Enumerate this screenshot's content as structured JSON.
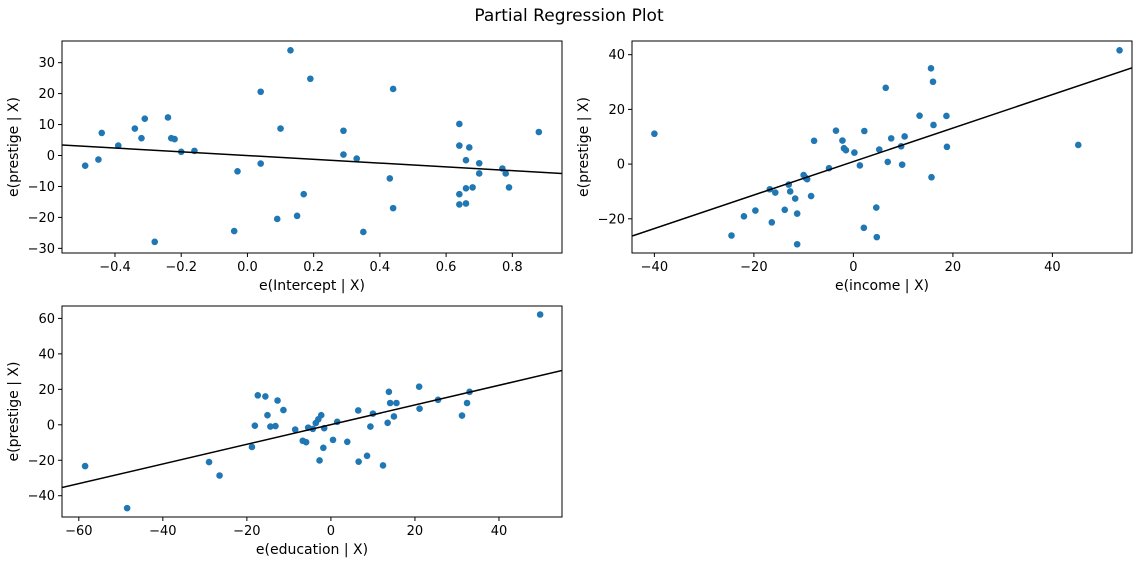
{
  "figure": {
    "title": "Partial Regression Plot"
  },
  "chart_data": [
    {
      "type": "scatter",
      "xlabel": "e(Intercept | X)",
      "ylabel": "e(prestige | X)",
      "xlim": [
        -0.56,
        0.95
      ],
      "ylim": [
        -31.5,
        37
      ],
      "xticks": [
        -0.4,
        -0.2,
        0.0,
        0.2,
        0.4,
        0.6,
        0.8
      ],
      "xtick_labels": [
        "−0.4",
        "−0.2",
        "0.0",
        "0.2",
        "0.4",
        "0.6",
        "0.8"
      ],
      "yticks": [
        -30,
        -20,
        -10,
        0,
        10,
        20,
        30
      ],
      "ytick_labels": [
        "−30",
        "−20",
        "−10",
        "0",
        "10",
        "20",
        "30"
      ],
      "marker_color": "#1f77b4",
      "line_color": "#000000",
      "fit_line": [
        [
          -0.56,
          3.4
        ],
        [
          0.95,
          -5.8
        ]
      ],
      "points": [
        [
          -0.49,
          -3.3
        ],
        [
          -0.45,
          -1.3
        ],
        [
          -0.44,
          7.3
        ],
        [
          -0.39,
          3.2
        ],
        [
          -0.34,
          8.7
        ],
        [
          -0.32,
          5.6
        ],
        [
          -0.31,
          11.9
        ],
        [
          -0.28,
          -27.9
        ],
        [
          -0.24,
          12.3
        ],
        [
          -0.23,
          5.6
        ],
        [
          -0.22,
          5.3
        ],
        [
          -0.2,
          1.2
        ],
        [
          -0.16,
          1.5
        ],
        [
          -0.04,
          -24.4
        ],
        [
          -0.03,
          -5.1
        ],
        [
          0.04,
          20.6
        ],
        [
          0.04,
          -2.6
        ],
        [
          0.09,
          -20.5
        ],
        [
          0.1,
          8.7
        ],
        [
          0.13,
          34.0
        ],
        [
          0.15,
          -19.5
        ],
        [
          0.17,
          -12.5
        ],
        [
          0.19,
          24.8
        ],
        [
          0.29,
          8.0
        ],
        [
          0.29,
          0.3
        ],
        [
          0.33,
          -1.0
        ],
        [
          0.35,
          -24.7
        ],
        [
          0.43,
          -7.4
        ],
        [
          0.44,
          21.5
        ],
        [
          0.44,
          -17.0
        ],
        [
          0.64,
          10.2
        ],
        [
          0.64,
          3.2
        ],
        [
          0.64,
          -12.5
        ],
        [
          0.64,
          -15.8
        ],
        [
          0.66,
          -1.5
        ],
        [
          0.66,
          -10.6
        ],
        [
          0.66,
          -15.5
        ],
        [
          0.67,
          2.6
        ],
        [
          0.68,
          -10.3
        ],
        [
          0.7,
          -2.5
        ],
        [
          0.7,
          -5.8
        ],
        [
          0.77,
          -4.2
        ],
        [
          0.78,
          -5.8
        ],
        [
          0.79,
          -10.3
        ],
        [
          0.88,
          7.6
        ]
      ]
    },
    {
      "type": "scatter",
      "xlabel": "e(income | X)",
      "ylabel": "e(prestige | X)",
      "xlim": [
        -44.5,
        56
      ],
      "ylim": [
        -32.5,
        45
      ],
      "xticks": [
        -40,
        -20,
        0,
        20,
        40
      ],
      "xtick_labels": [
        "−40",
        "−20",
        "0",
        "20",
        "40"
      ],
      "yticks": [
        -20,
        0,
        20,
        40
      ],
      "ytick_labels": [
        "−20",
        "0",
        "20",
        "40"
      ],
      "marker_color": "#1f77b4",
      "line_color": "#000000",
      "fit_line": [
        [
          -44.5,
          -26.3
        ],
        [
          56,
          35.2
        ]
      ],
      "points": [
        [
          -40.0,
          11.1
        ],
        [
          -24.5,
          -26.1
        ],
        [
          -22.0,
          -19.1
        ],
        [
          -19.7,
          -17.0
        ],
        [
          -16.8,
          -9.2
        ],
        [
          -16.4,
          -21.3
        ],
        [
          -15.7,
          -10.4
        ],
        [
          -13.8,
          -16.7
        ],
        [
          -13.0,
          -7.5
        ],
        [
          -12.7,
          -10.0
        ],
        [
          -11.7,
          -12.6
        ],
        [
          -11.3,
          -18.1
        ],
        [
          -11.3,
          -29.3
        ],
        [
          -10.0,
          -4.0
        ],
        [
          -9.6,
          -5.0
        ],
        [
          -9.3,
          -5.5
        ],
        [
          -8.5,
          -11.7
        ],
        [
          -7.9,
          8.5
        ],
        [
          -4.9,
          -1.5
        ],
        [
          -3.5,
          12.2
        ],
        [
          -2.2,
          8.6
        ],
        [
          -1.9,
          5.8
        ],
        [
          -1.5,
          5.1
        ],
        [
          0.2,
          4.2
        ],
        [
          1.3,
          -0.5
        ],
        [
          2.1,
          -23.3
        ],
        [
          2.2,
          12.1
        ],
        [
          4.6,
          -15.9
        ],
        [
          4.7,
          -26.7
        ],
        [
          5.2,
          5.3
        ],
        [
          6.5,
          27.9
        ],
        [
          6.9,
          0.8
        ],
        [
          7.6,
          9.4
        ],
        [
          9.6,
          6.5
        ],
        [
          9.8,
          -0.2
        ],
        [
          10.3,
          10.1
        ],
        [
          13.3,
          17.7
        ],
        [
          15.6,
          35.0
        ],
        [
          15.7,
          -4.8
        ],
        [
          16.0,
          30.1
        ],
        [
          16.1,
          14.3
        ],
        [
          18.7,
          17.6
        ],
        [
          18.8,
          6.3
        ],
        [
          45.2,
          7.0
        ],
        [
          53.5,
          41.6
        ]
      ]
    },
    {
      "type": "scatter",
      "xlabel": "e(education | X)",
      "ylabel": "e(prestige | X)",
      "xlim": [
        -64,
        55
      ],
      "ylim": [
        -52,
        67
      ],
      "xticks": [
        -60,
        -40,
        -20,
        0,
        20,
        40
      ],
      "xtick_labels": [
        "−60",
        "−40",
        "−20",
        "0",
        "20",
        "40"
      ],
      "yticks": [
        -40,
        -20,
        0,
        20,
        40,
        60
      ],
      "ytick_labels": [
        "−40",
        "−20",
        "0",
        "20",
        "40",
        "60"
      ],
      "marker_color": "#1f77b4",
      "line_color": "#000000",
      "fit_line": [
        [
          -64,
          -35.4
        ],
        [
          55,
          30.6
        ]
      ],
      "points": [
        [
          -58.5,
          -23.3
        ],
        [
          -48.5,
          -47.0
        ],
        [
          -29.0,
          -21.0
        ],
        [
          -26.5,
          -28.6
        ],
        [
          -18.8,
          -12.5
        ],
        [
          -18.1,
          -0.5
        ],
        [
          -17.4,
          16.6
        ],
        [
          -15.6,
          16.0
        ],
        [
          -15.1,
          5.4
        ],
        [
          -14.4,
          -1.0
        ],
        [
          -13.2,
          -0.7
        ],
        [
          -12.7,
          13.7
        ],
        [
          -11.3,
          8.3
        ],
        [
          -8.5,
          -2.7
        ],
        [
          -6.7,
          -9.0
        ],
        [
          -5.9,
          -9.8
        ],
        [
          -5.4,
          -1.6
        ],
        [
          -4.3,
          -2.3
        ],
        [
          -3.6,
          1.0
        ],
        [
          -3.0,
          3.1
        ],
        [
          -2.7,
          -20.1
        ],
        [
          -2.3,
          5.4
        ],
        [
          -1.8,
          -13.0
        ],
        [
          -1.6,
          -1.9
        ],
        [
          0.5,
          -8.5
        ],
        [
          1.5,
          1.7
        ],
        [
          3.9,
          -9.6
        ],
        [
          6.5,
          8.1
        ],
        [
          6.6,
          -20.8
        ],
        [
          8.6,
          -17.5
        ],
        [
          9.4,
          -1.0
        ],
        [
          10.0,
          6.3
        ],
        [
          12.4,
          -22.9
        ],
        [
          13.5,
          1.1
        ],
        [
          13.8,
          18.6
        ],
        [
          14.1,
          12.3
        ],
        [
          15.0,
          4.7
        ],
        [
          15.6,
          12.3
        ],
        [
          21.0,
          21.5
        ],
        [
          21.1,
          9.1
        ],
        [
          25.5,
          14.1
        ],
        [
          31.2,
          5.2
        ],
        [
          32.4,
          12.3
        ],
        [
          33.0,
          18.6
        ],
        [
          49.8,
          62.2
        ]
      ]
    }
  ]
}
